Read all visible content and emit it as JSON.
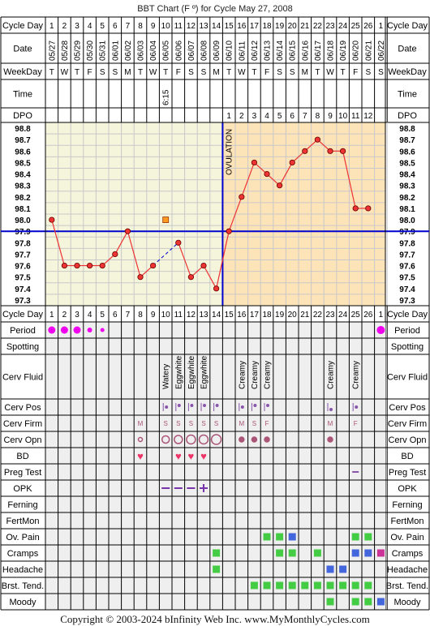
{
  "title": "BBT Chart (F º) for Cycle May 27, 2008",
  "footer": "Copyright © 2003-2024 bInfinity Web Inc.    www.MyMonthlyCycles.com",
  "colors": {
    "fill": "#f5f5dc",
    "post_ovulation": "#fde3b8",
    "coverline": "#0000cc",
    "temp": "#ee3333",
    "cell_bg": "#efefef",
    "green": "#44cc44",
    "blue": "#4466dd",
    "magenta": "#cc3399",
    "period": "#ee00ee"
  },
  "row_labels": {
    "cycle_day": "Cycle Day",
    "date": "Date",
    "weekday": "WeekDay",
    "time": "Time",
    "dpo": "DPO",
    "period": "Period",
    "spotting": "Spotting",
    "cerv_fluid": "Cerv Fluid",
    "cerv_pos": "Cerv Pos",
    "cerv_firm": "Cerv Firm",
    "cerv_opn": "Cerv Opn",
    "bd": "BD",
    "preg_test": "Preg Test",
    "opk": "OPK",
    "ferning": "Ferning",
    "fertmon": "FertMon",
    "ov_pain": "Ov. Pain",
    "cramps": "Cramps",
    "headache": "Headache",
    "brst_tend": "Brst. Tend.",
    "moody": "Moody"
  },
  "cycle_days": [
    "1",
    "2",
    "3",
    "4",
    "5",
    "6",
    "7",
    "8",
    "9",
    "10",
    "11",
    "12",
    "13",
    "14",
    "15",
    "16",
    "17",
    "18",
    "19",
    "20",
    "21",
    "22",
    "23",
    "24",
    "25",
    "26",
    "1"
  ],
  "dates": [
    "05/27",
    "05/28",
    "05/29",
    "05/30",
    "05/31",
    "06/01",
    "06/02",
    "06/03",
    "06/04",
    "06/05",
    "06/06",
    "06/07",
    "06/08",
    "06/09",
    "06/10",
    "06/11",
    "06/12",
    "06/13",
    "06/14",
    "06/15",
    "06/16",
    "06/17",
    "06/18",
    "06/19",
    "06/20",
    "06/21",
    "06/22"
  ],
  "weekdays": [
    "T",
    "W",
    "T",
    "F",
    "S",
    "S",
    "M",
    "T",
    "W",
    "T",
    "F",
    "S",
    "S",
    "M",
    "T",
    "W",
    "T",
    "F",
    "S",
    "S",
    "M",
    "T",
    "W",
    "T",
    "F",
    "S",
    "S"
  ],
  "times": [
    "",
    "",
    "",
    "",
    "",
    "",
    "",
    "",
    "",
    "6:15",
    "",
    "",
    "",
    "",
    "",
    "",
    "",
    "",
    "",
    "",
    "",
    "",
    "",
    "",
    "",
    "",
    ""
  ],
  "dpo": [
    "",
    "",
    "",
    "",
    "",
    "",
    "",
    "",
    "",
    "",
    "",
    "",
    "",
    "",
    "1",
    "2",
    "3",
    "4",
    "5",
    "6",
    "7",
    "8",
    "9",
    "10",
    "11",
    "12",
    ""
  ],
  "ovulation_label": "OVULATION",
  "cerv_fluid": [
    "",
    "",
    "",
    "",
    "",
    "",
    "",
    "",
    "",
    "Watery",
    "Eggwhite",
    "Eggwhite",
    "Eggwhite",
    "",
    "",
    "Creamy",
    "Creamy",
    "Creamy",
    "",
    "",
    "",
    "",
    "Creamy",
    "",
    "Creamy",
    "",
    ""
  ],
  "cerv_firm": [
    "",
    "",
    "",
    "",
    "",
    "",
    "",
    "M",
    "",
    "S",
    "S",
    "S",
    "S",
    "S",
    "",
    "M",
    "S",
    "F",
    "",
    "",
    "",
    "",
    "M",
    "",
    "F",
    "",
    ""
  ],
  "chart_data": {
    "type": "line",
    "title": "BBT Chart (F º) for Cycle May 27, 2008",
    "x": [
      1,
      2,
      3,
      4,
      5,
      6,
      7,
      8,
      9,
      10,
      11,
      12,
      13,
      14,
      15,
      16,
      17,
      18,
      19,
      20,
      21,
      22,
      23,
      24,
      25,
      26
    ],
    "temps": [
      98.0,
      97.6,
      97.6,
      97.6,
      97.6,
      97.7,
      97.9,
      97.5,
      97.6,
      null,
      97.8,
      97.5,
      97.6,
      97.4,
      97.9,
      98.2,
      98.5,
      98.4,
      98.3,
      98.5,
      98.6,
      98.7,
      98.6,
      98.6,
      98.1,
      98.1
    ],
    "discarded": [
      {
        "day": 10,
        "temp": 98.0
      }
    ],
    "coverline": 97.9,
    "ovulation_day": 14,
    "y_ticks": [
      "98.8",
      "98.7",
      "98.6",
      "98.5",
      "98.4",
      "98.3",
      "98.2",
      "98.1",
      "98.0",
      "97.9",
      "97.8",
      "97.7",
      "97.6",
      "97.5",
      "97.4",
      "97.3"
    ],
    "ylim": [
      97.3,
      98.8
    ]
  }
}
